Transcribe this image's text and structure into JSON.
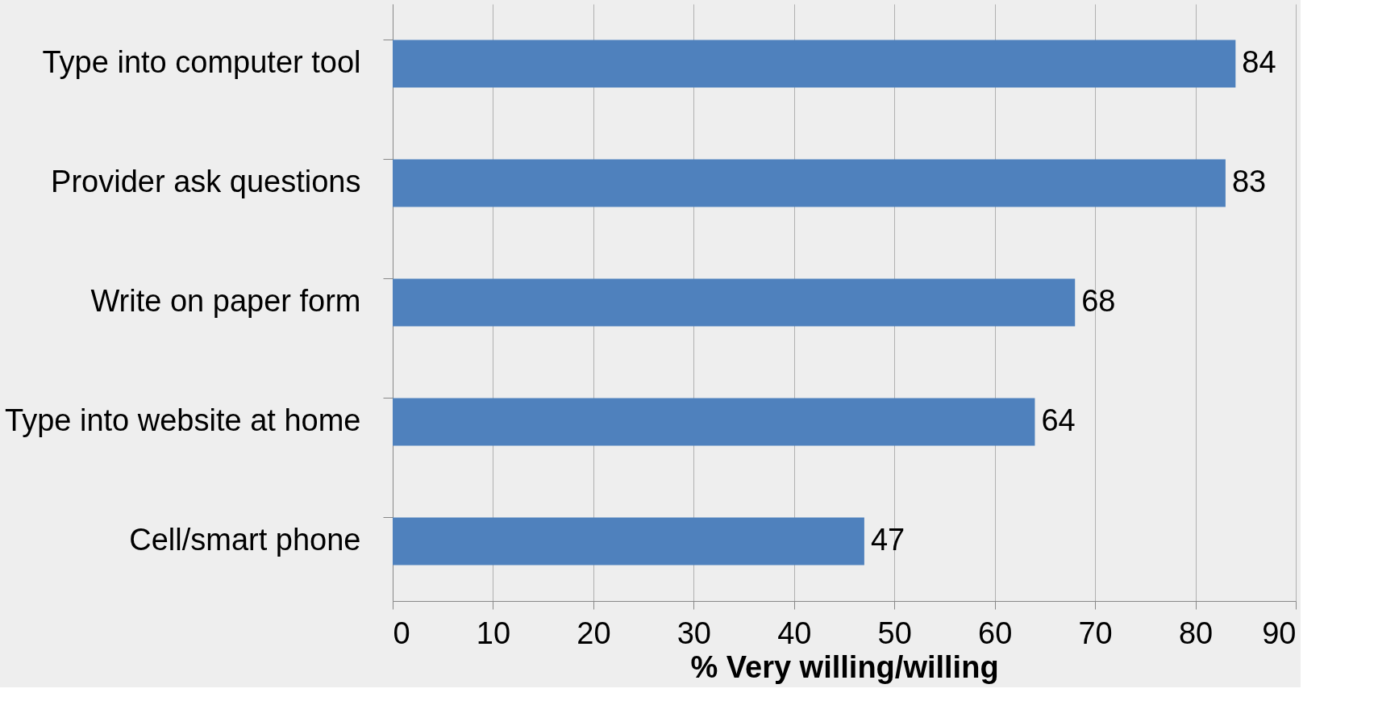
{
  "chart_data": {
    "type": "bar",
    "orientation": "horizontal",
    "xlabel": "% Very willing/willing",
    "categories": [
      "Type into computer tool",
      "Provider ask questions",
      "Write on paper form",
      "Type into website at home",
      "Cell/smart phone"
    ],
    "values": [
      84,
      83,
      68,
      64,
      47
    ],
    "color": "#4f81bd",
    "xlim": [
      0,
      90
    ],
    "xticks": [
      0,
      10,
      20,
      30,
      40,
      50,
      60,
      70,
      80,
      90
    ],
    "grid": "x",
    "data_labels": true
  }
}
